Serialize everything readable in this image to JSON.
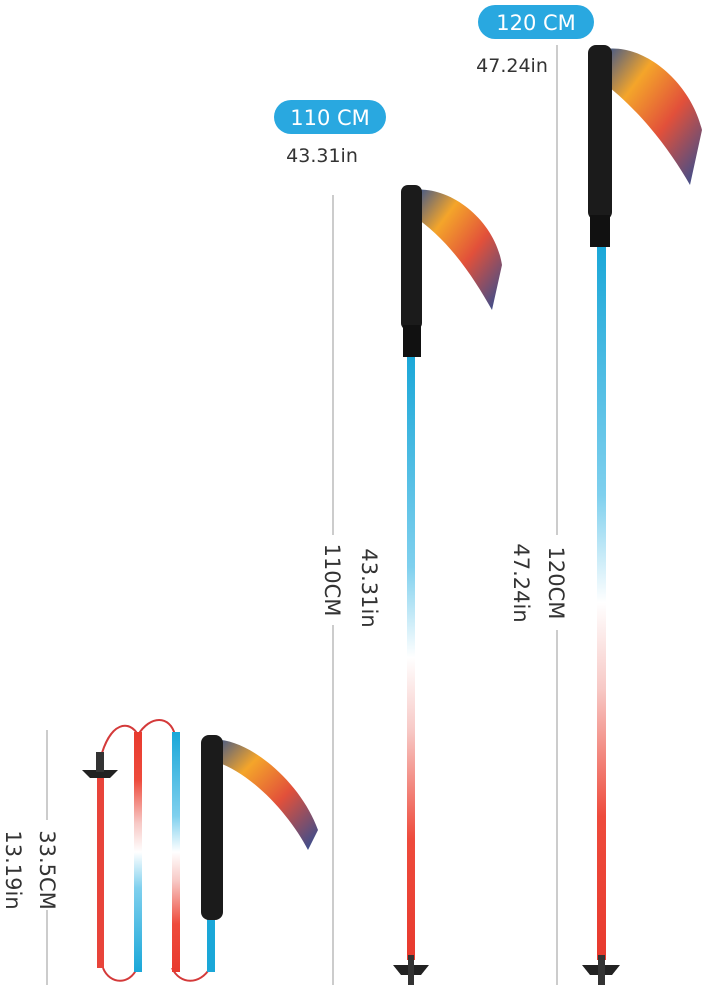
{
  "badges": [
    {
      "label": "120 CM",
      "sub": "47.24in"
    },
    {
      "label": "110 CM",
      "sub": "43.31in"
    }
  ],
  "dimensions": [
    {
      "cm": "110CM",
      "in": "43.31in"
    },
    {
      "cm": "120CM",
      "in": "47.24in"
    },
    {
      "cm": "33.5CM",
      "in": "13.19in"
    }
  ]
}
